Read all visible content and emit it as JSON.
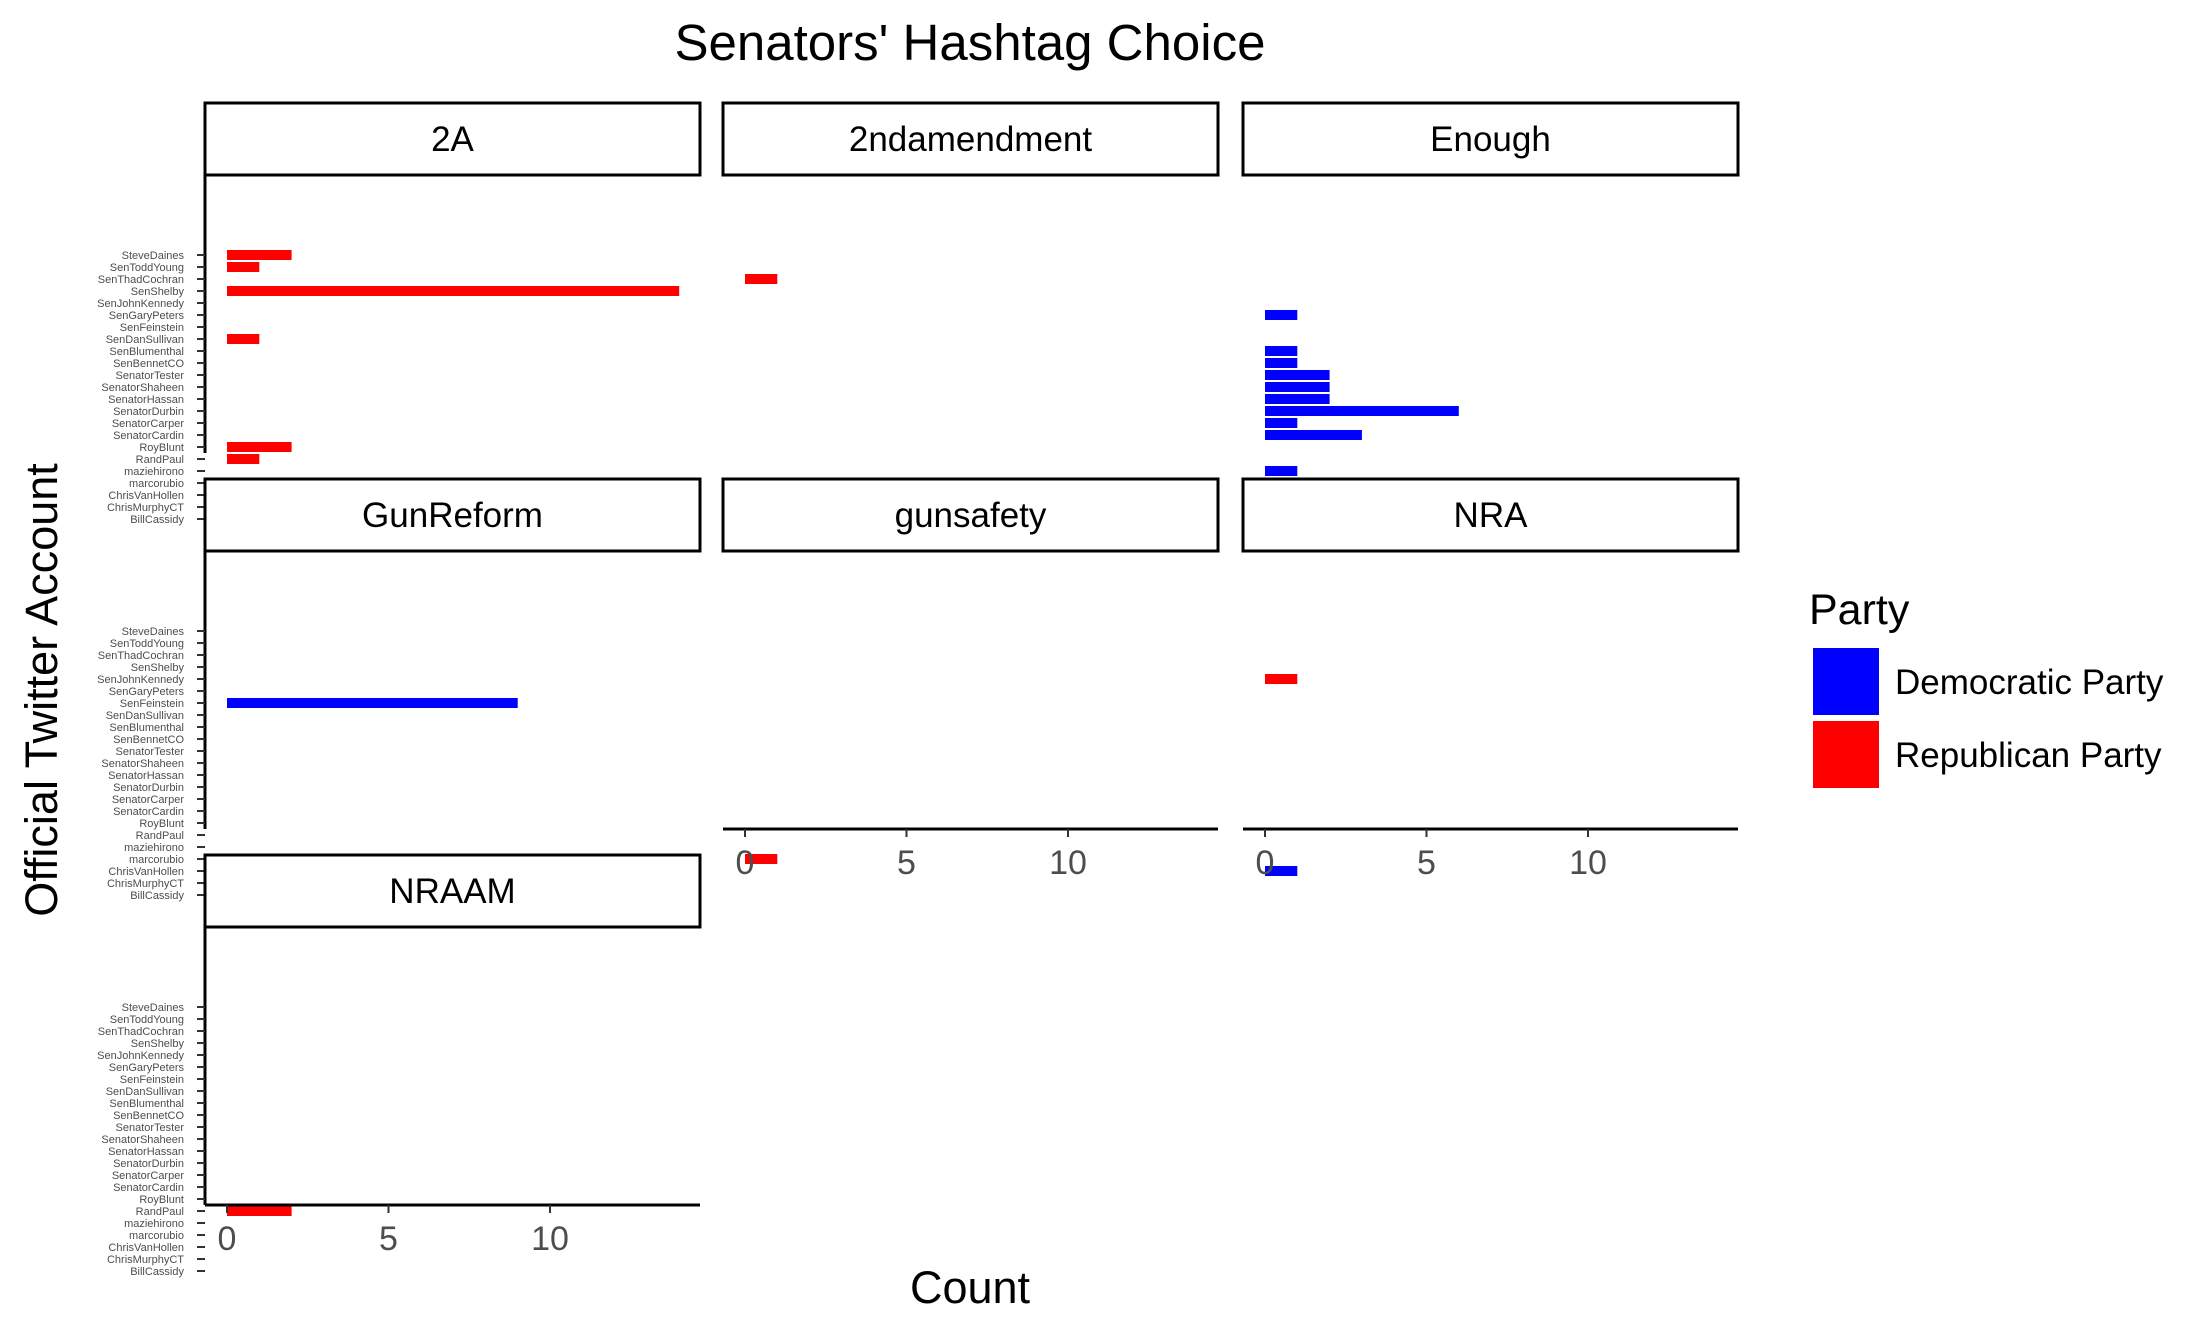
{
  "chart_data": {
    "type": "bar",
    "orientation": "horizontal",
    "title": "Senators' Hashtag Choice",
    "xlabel": "Count",
    "ylabel": "Official Twitter Account",
    "xlim": [
      0,
      14
    ],
    "x_ticks": [
      "0",
      "5",
      "10"
    ],
    "grid": false,
    "legend_position": "right",
    "legend": {
      "title": "Party",
      "entries": [
        {
          "name": "Democratic Party",
          "color": "#0000ff"
        },
        {
          "name": "Republican Party",
          "color": "#ff0000"
        }
      ]
    },
    "categories": [
      "SteveDaines",
      "SenToddYoung",
      "SenThadCochran",
      "SenShelby",
      "SenJohnKennedy",
      "SenGaryPeters",
      "SenFeinstein",
      "SenDanSullivan",
      "SenBlumenthal",
      "SenBennetCO",
      "SenatorTester",
      "SenatorShaheen",
      "SenatorHassan",
      "SenatorDurbin",
      "SenatorCarper",
      "SenatorCardin",
      "RoyBlunt",
      "RandPaul",
      "maziehirono",
      "marcorubio",
      "ChrisVanHollen",
      "ChrisMurphyCT",
      "BillCassidy"
    ],
    "panels": [
      {
        "label": "2A",
        "bars": [
          {
            "category": "SteveDaines",
            "value": 2,
            "party": "Republican Party"
          },
          {
            "category": "SenToddYoung",
            "value": 1,
            "party": "Republican Party"
          },
          {
            "category": "SenShelby",
            "value": 14,
            "party": "Republican Party"
          },
          {
            "category": "SenDanSullivan",
            "value": 1,
            "party": "Republican Party"
          },
          {
            "category": "RoyBlunt",
            "value": 2,
            "party": "Republican Party"
          },
          {
            "category": "RandPaul",
            "value": 1,
            "party": "Republican Party"
          }
        ]
      },
      {
        "label": "2ndamendment",
        "bars": [
          {
            "category": "SenThadCochran",
            "value": 1,
            "party": "Republican Party"
          },
          {
            "category": "BillCassidy",
            "value": 1,
            "party": "Republican Party"
          }
        ]
      },
      {
        "label": "Enough",
        "bars": [
          {
            "category": "SenGaryPeters",
            "value": 1,
            "party": "Democratic Party"
          },
          {
            "category": "SenBlumenthal",
            "value": 1,
            "party": "Democratic Party"
          },
          {
            "category": "SenBennetCO",
            "value": 1,
            "party": "Democratic Party"
          },
          {
            "category": "SenatorTester",
            "value": 2,
            "party": "Democratic Party"
          },
          {
            "category": "SenatorShaheen",
            "value": 2,
            "party": "Democratic Party"
          },
          {
            "category": "SenatorHassan",
            "value": 2,
            "party": "Democratic Party"
          },
          {
            "category": "SenatorDurbin",
            "value": 6,
            "party": "Democratic Party"
          },
          {
            "category": "SenatorCarper",
            "value": 1,
            "party": "Democratic Party"
          },
          {
            "category": "SenatorCardin",
            "value": 3,
            "party": "Democratic Party"
          },
          {
            "category": "maziehirono",
            "value": 1,
            "party": "Democratic Party"
          },
          {
            "category": "ChrisMurphyCT",
            "value": 1,
            "party": "Democratic Party"
          }
        ]
      },
      {
        "label": "GunReform",
        "bars": [
          {
            "category": "SenFeinstein",
            "value": 9,
            "party": "Democratic Party"
          }
        ]
      },
      {
        "label": "gunsafety",
        "bars": [
          {
            "category": "marcorubio",
            "value": 1,
            "party": "Republican Party"
          }
        ]
      },
      {
        "label": "NRA",
        "bars": [
          {
            "category": "SenJohnKennedy",
            "value": 1,
            "party": "Republican Party"
          },
          {
            "category": "ChrisVanHollen",
            "value": 1,
            "party": "Democratic Party"
          }
        ]
      },
      {
        "label": "NRAAM",
        "bars": [
          {
            "category": "RandPaul",
            "value": 2,
            "party": "Republican Party"
          }
        ]
      }
    ]
  }
}
